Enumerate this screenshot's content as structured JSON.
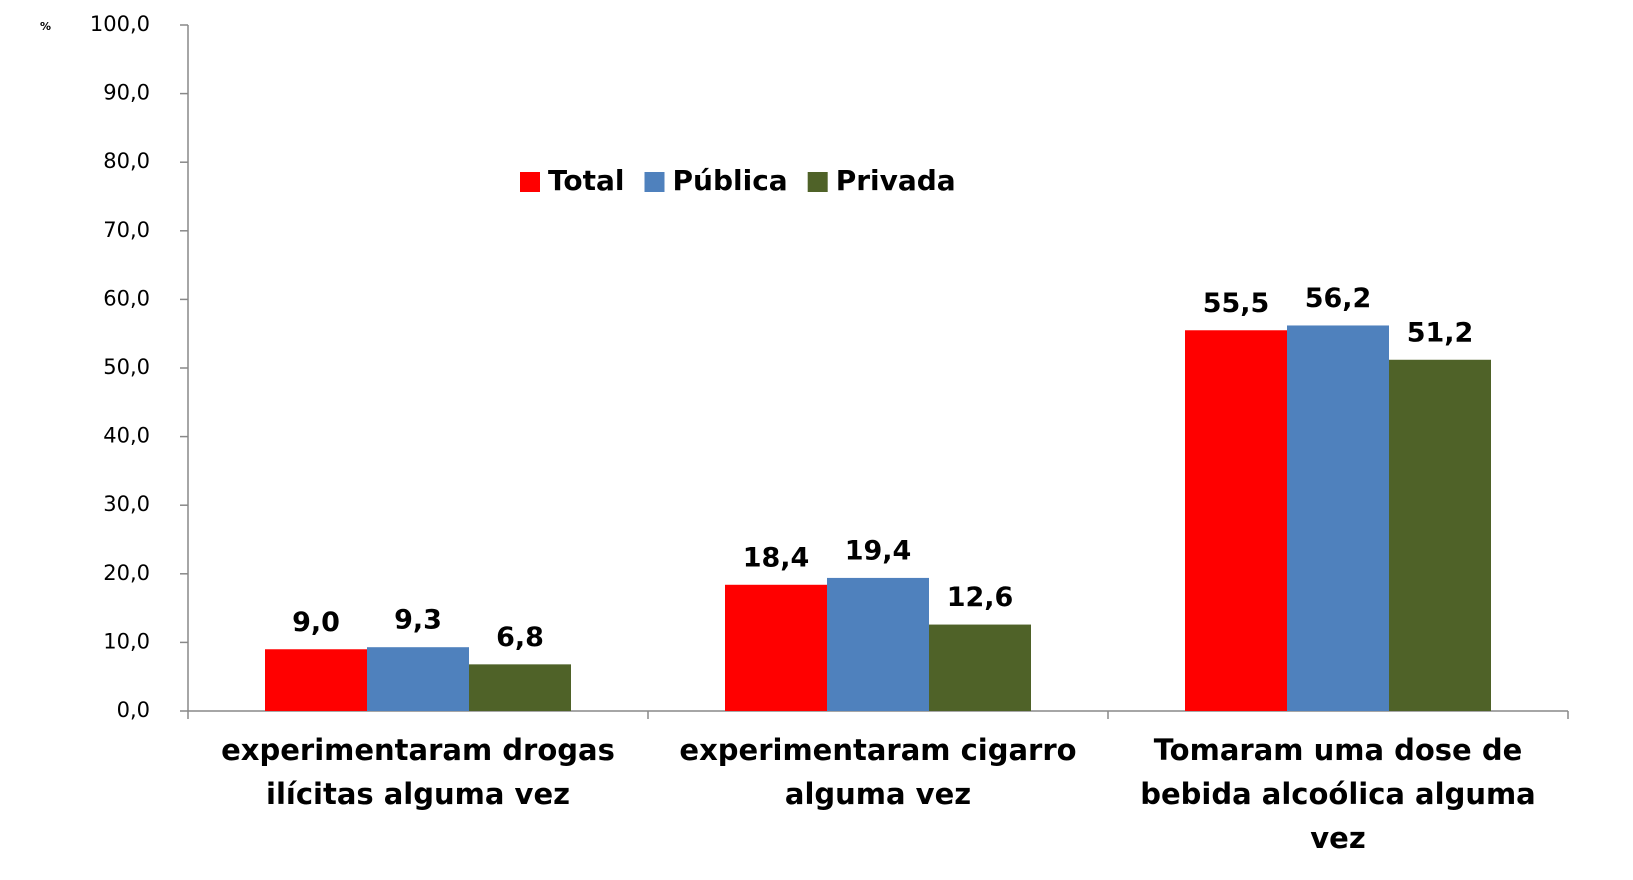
{
  "chart_data": {
    "type": "bar",
    "y_label": "%",
    "categories": [
      "experimentaram drogas ilícitas alguma vez",
      "experimentaram cigarro alguma vez",
      "Tomaram uma dose de bebida alcoólica alguma vez"
    ],
    "series": [
      {
        "name": "Total",
        "color": "#ff0000",
        "values": [
          9.0,
          18.4,
          55.5
        ],
        "value_labels": [
          "9,0",
          "18,4",
          "55,5"
        ]
      },
      {
        "name": "Pública",
        "color": "#4f81bd",
        "values": [
          9.3,
          19.4,
          56.2
        ],
        "value_labels": [
          "9,3",
          "19,4",
          "56,2"
        ]
      },
      {
        "name": "Privada",
        "color": "#4f6228",
        "values": [
          6.8,
          12.6,
          51.2
        ],
        "value_labels": [
          "6,8",
          "12,6",
          "51,2"
        ]
      }
    ],
    "ylim": [
      0,
      100
    ],
    "yticks": [
      {
        "value": 0,
        "label": "0,0"
      },
      {
        "value": 10,
        "label": "10,0"
      },
      {
        "value": 20,
        "label": "20,0"
      },
      {
        "value": 30,
        "label": "30,0"
      },
      {
        "value": 40,
        "label": "40,0"
      },
      {
        "value": 50,
        "label": "50,0"
      },
      {
        "value": 60,
        "label": "60,0"
      },
      {
        "value": 70,
        "label": "70,0"
      },
      {
        "value": 80,
        "label": "80,0"
      },
      {
        "value": 90,
        "label": "90,0"
      },
      {
        "value": 100,
        "label": "100,0"
      }
    ],
    "grid": false,
    "legend": "top"
  }
}
